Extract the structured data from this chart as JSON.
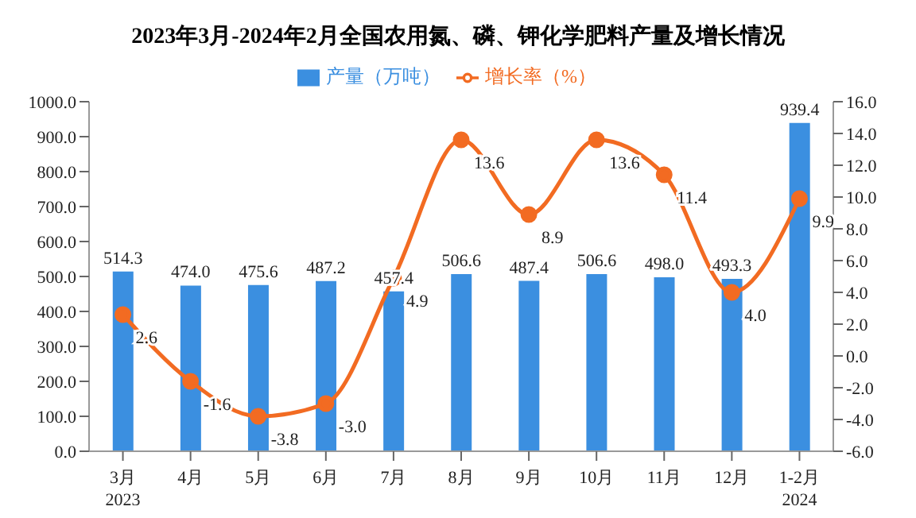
{
  "chart_data": {
    "type": "bar",
    "title": "2023年3月-2024年2月全国农用氮、磷、钾化学肥料产量及增长情况",
    "categories": [
      "3月\n2023",
      "4月",
      "5月",
      "6月",
      "7月",
      "8月",
      "9月",
      "10月",
      "11月",
      "12月",
      "1-2月\n2024"
    ],
    "series": [
      {
        "name": "产量（万吨）",
        "color": "#3b8fe0",
        "values": [
          514.3,
          474.0,
          475.6,
          487.2,
          457.4,
          506.6,
          487.4,
          506.6,
          498.0,
          493.3,
          939.4
        ],
        "value_labels": [
          "514.3",
          "474.0",
          "475.6",
          "487.2",
          "457.4",
          "506.6",
          "487.4",
          "506.6",
          "498.0",
          "493.3",
          "939.4"
        ]
      },
      {
        "name": "增长率（%）",
        "type": "line",
        "axis": "y2",
        "color": "#f26b22",
        "values": [
          2.6,
          -1.6,
          -3.8,
          -3.0,
          4.9,
          13.6,
          8.9,
          13.6,
          11.4,
          4.0,
          9.9
        ],
        "value_labels": [
          "2.6",
          "-1.6",
          "-3.8",
          "-3.0",
          "4.9",
          "13.6",
          "8.9",
          "13.6",
          "11.4",
          "4.0",
          "9.9"
        ]
      }
    ],
    "ylim": [
      0,
      1000
    ],
    "yticks": [
      {
        "value": 0,
        "label": "0.0"
      },
      {
        "value": 100,
        "label": "100.0"
      },
      {
        "value": 200,
        "label": "200.0"
      },
      {
        "value": 300,
        "label": "300.0"
      },
      {
        "value": 400,
        "label": "400.0"
      },
      {
        "value": 500,
        "label": "500.0"
      },
      {
        "value": 600,
        "label": "600.0"
      },
      {
        "value": 700,
        "label": "700.0"
      },
      {
        "value": 800,
        "label": "800.0"
      },
      {
        "value": 900,
        "label": "900.0"
      },
      {
        "value": 1000,
        "label": "1000.0"
      }
    ],
    "y2lim": [
      -6,
      16
    ],
    "y2ticks": [
      {
        "value": -6,
        "label": "-6.0"
      },
      {
        "value": -4,
        "label": "-4.0"
      },
      {
        "value": -2,
        "label": "-2.0"
      },
      {
        "value": 0,
        "label": "0.0"
      },
      {
        "value": 2,
        "label": "2.0"
      },
      {
        "value": 4,
        "label": "4.0"
      },
      {
        "value": 6,
        "label": "6.0"
      },
      {
        "value": 8,
        "label": "8.0"
      },
      {
        "value": 10,
        "label": "10.0"
      },
      {
        "value": 12,
        "label": "12.0"
      },
      {
        "value": 14,
        "label": "14.0"
      },
      {
        "value": 16,
        "label": "16.0"
      }
    ],
    "legend": "top",
    "grid": false,
    "marker": "circle",
    "line_style": "solid"
  }
}
